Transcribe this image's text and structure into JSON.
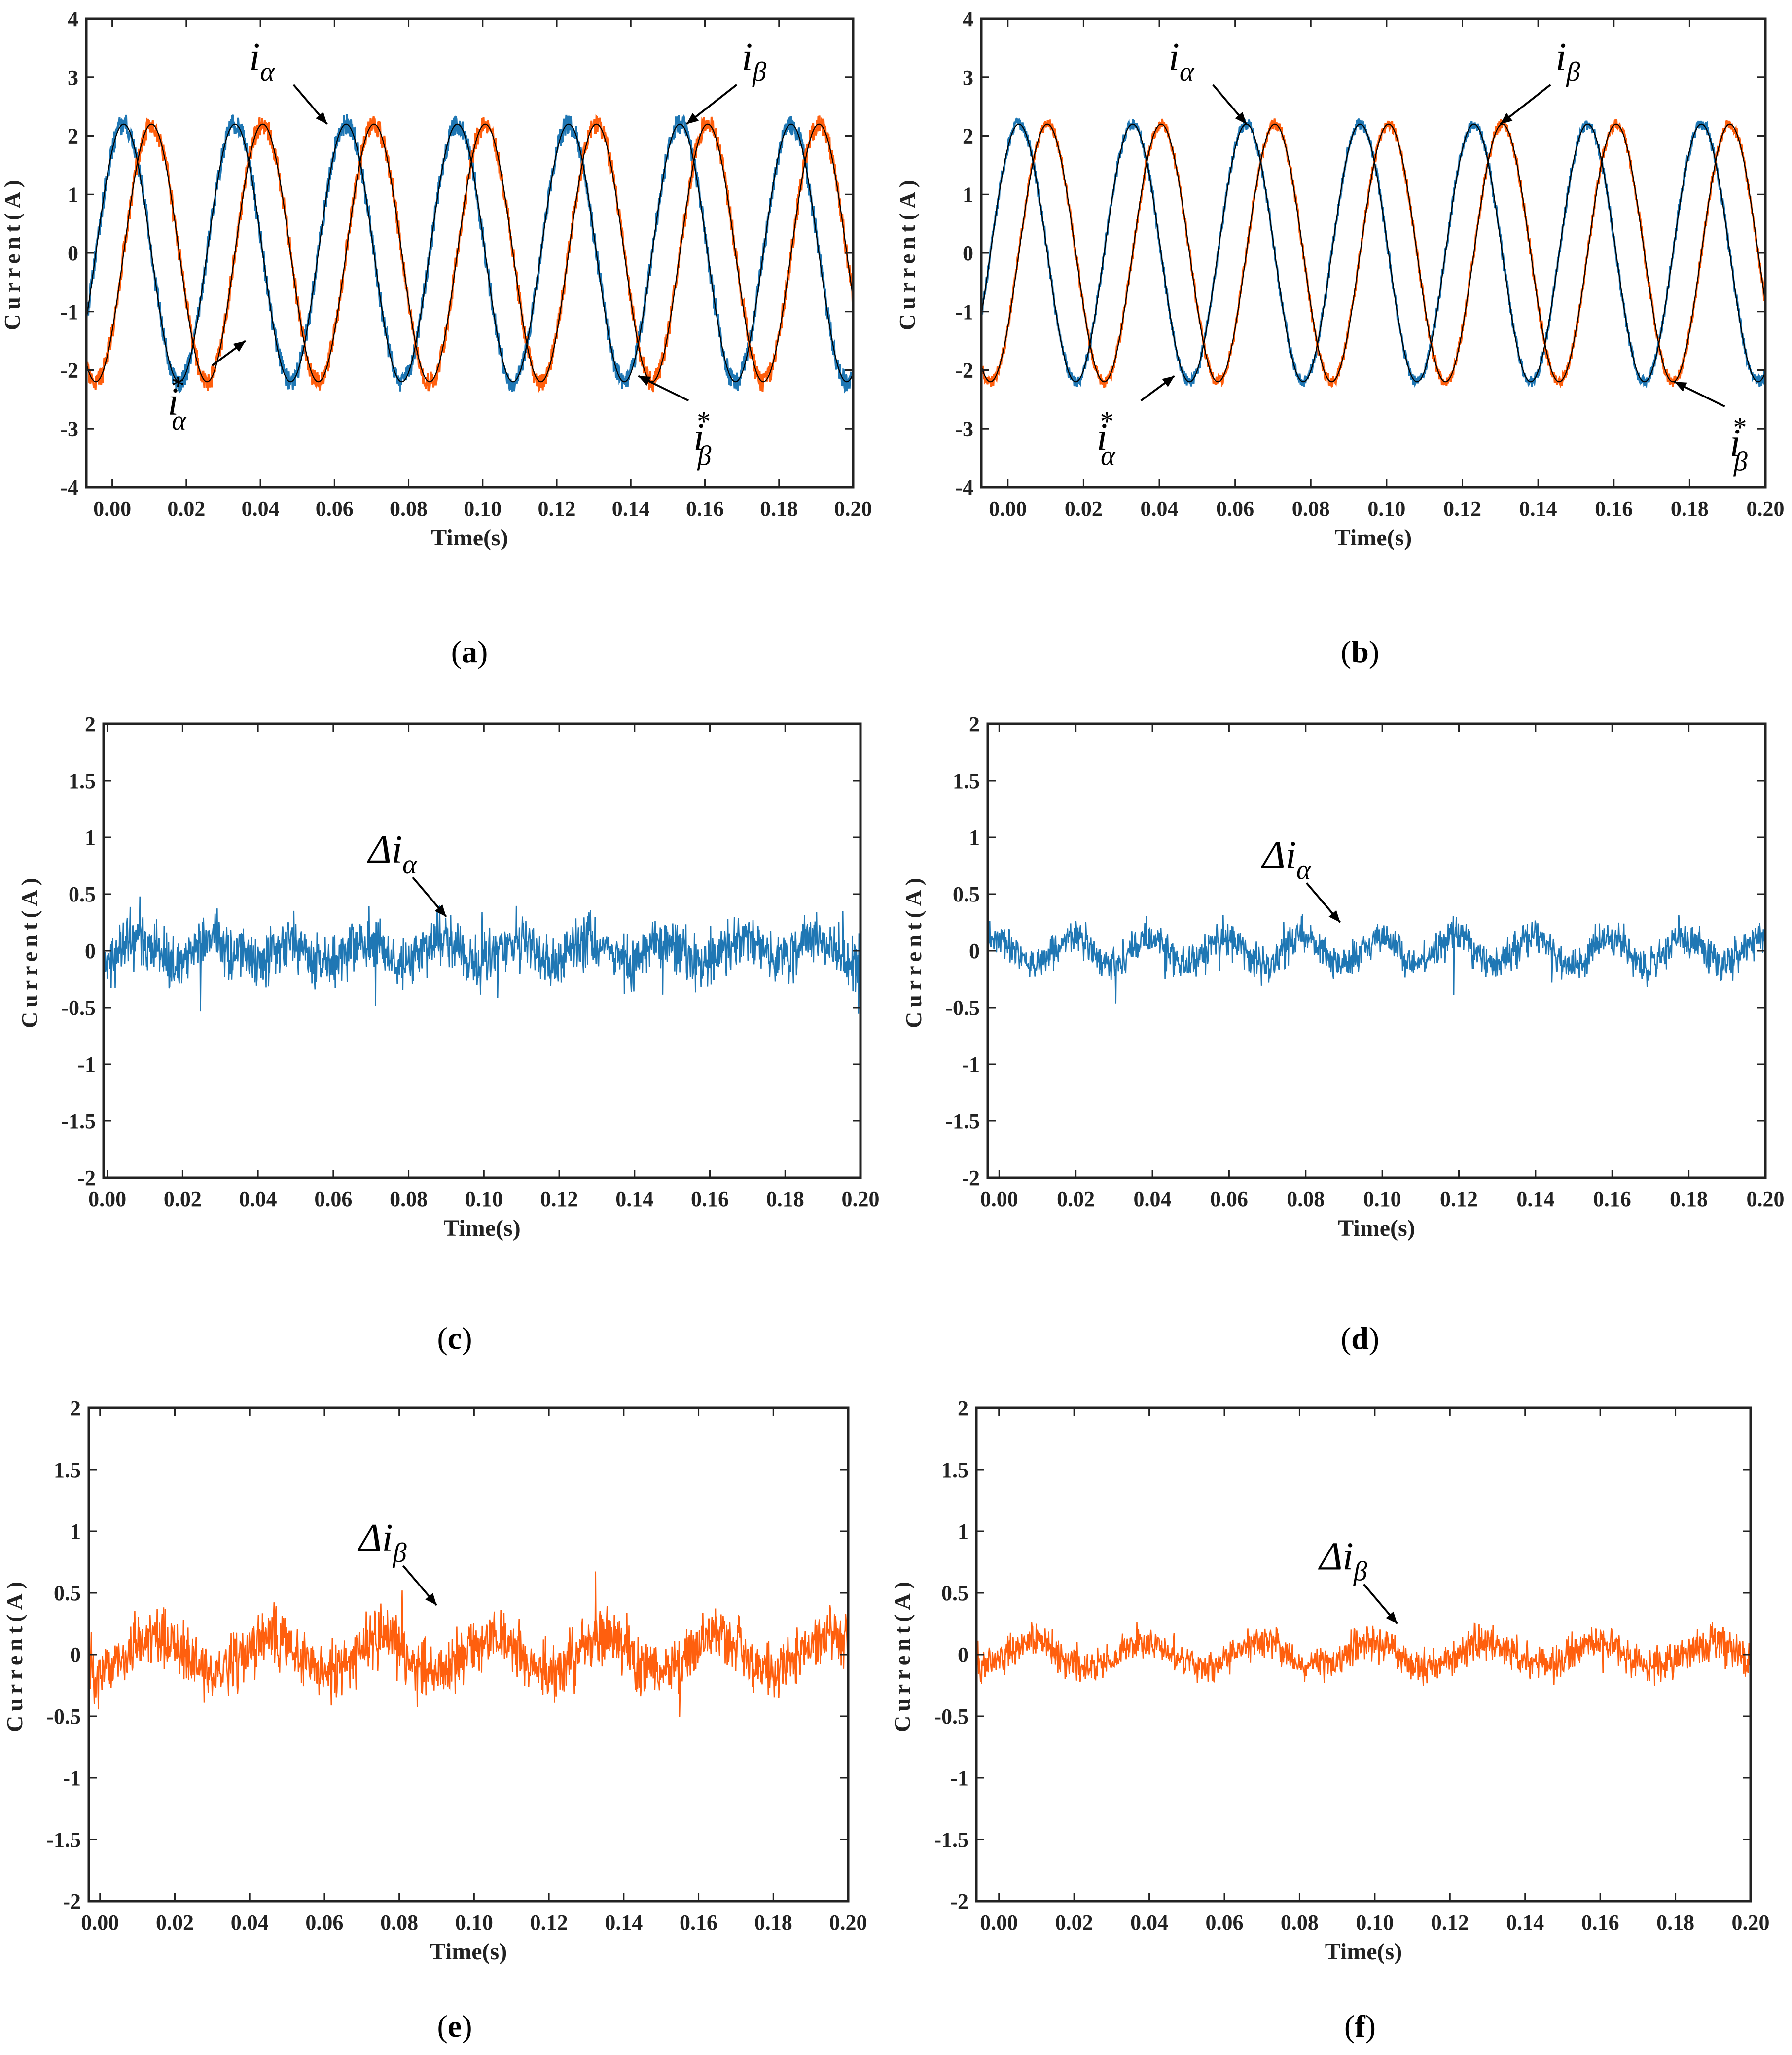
{
  "colors": {
    "alpha": "#1f77b4",
    "beta": "#ff5f0e",
    "reference": "#000000",
    "axis": "#222222"
  },
  "chart_data": [
    {
      "id": "a",
      "type": "line",
      "caption": "a",
      "xlabel": "Time(s)",
      "ylabel": "Current(A)",
      "xlim": [
        -0.007,
        0.2
      ],
      "ylim": [
        -4,
        4
      ],
      "xticks": [
        "0.00",
        "0.02",
        "0.04",
        "0.06",
        "0.08",
        "0.10",
        "0.12",
        "0.14",
        "0.16",
        "0.18",
        "0.20"
      ],
      "yticks": [
        "-4",
        "-3",
        "-2",
        "-1",
        "0",
        "1",
        "2",
        "3",
        "4"
      ],
      "signal": {
        "kind": "sine",
        "freq": 33.3,
        "amp": 2.2,
        "phase_alpha_deg": 53,
        "noise": 0.18
      },
      "series": [
        {
          "name": "i_alpha",
          "color": "alpha",
          "measured": true
        },
        {
          "name": "i_beta",
          "color": "beta",
          "measured": true
        },
        {
          "name": "i_alpha*",
          "color": "reference",
          "measured": false
        },
        {
          "name": "i_beta*",
          "color": "reference",
          "measured": false
        }
      ],
      "annotations": [
        {
          "base": "i",
          "sub": "α",
          "sup": "",
          "x": 0.058,
          "y": 2.2
        },
        {
          "base": "i",
          "sub": "β",
          "sup": "",
          "x": 0.155,
          "y": 2.2
        },
        {
          "base": "i",
          "sub": "α",
          "sup": "*",
          "x": 0.036,
          "y": -1.5
        },
        {
          "base": "i",
          "sub": "β",
          "sup": "*",
          "x": 0.142,
          "y": -2.1
        }
      ]
    },
    {
      "id": "b",
      "type": "line",
      "caption": "b",
      "xlabel": "Time(s)",
      "ylabel": "Current(A)",
      "xlim": [
        -0.007,
        0.2
      ],
      "ylim": [
        -4,
        4
      ],
      "xticks": [
        "0.00",
        "0.02",
        "0.04",
        "0.06",
        "0.08",
        "0.10",
        "0.12",
        "0.14",
        "0.16",
        "0.18",
        "0.20"
      ],
      "yticks": [
        "-4",
        "-3",
        "-2",
        "-1",
        "0",
        "1",
        "2",
        "3",
        "4"
      ],
      "signal": {
        "kind": "sine",
        "freq": 33.3,
        "amp": 2.2,
        "phase_alpha_deg": 55,
        "noise": 0.1
      },
      "series": [
        {
          "name": "i_alpha",
          "color": "alpha",
          "measured": true
        },
        {
          "name": "i_beta",
          "color": "beta",
          "measured": true
        },
        {
          "name": "i_alpha*",
          "color": "reference",
          "measured": false
        },
        {
          "name": "i_beta*",
          "color": "reference",
          "measured": false
        }
      ],
      "annotations": [
        {
          "base": "i",
          "sub": "α",
          "sup": "",
          "x": 0.063,
          "y": 2.2
        },
        {
          "base": "i",
          "sub": "β",
          "sup": "",
          "x": 0.13,
          "y": 2.2
        },
        {
          "base": "i",
          "sub": "α",
          "sup": "*",
          "x": 0.044,
          "y": -2.1
        },
        {
          "base": "i",
          "sub": "β",
          "sup": "*",
          "x": 0.176,
          "y": -2.2
        }
      ]
    },
    {
      "id": "c",
      "type": "line",
      "caption": "c",
      "xlabel": "Time(s)",
      "ylabel": "Current(A)",
      "xlim": [
        -0.001,
        0.2
      ],
      "ylim": [
        -2,
        2
      ],
      "xticks": [
        "0.00",
        "0.02",
        "0.04",
        "0.06",
        "0.08",
        "0.10",
        "0.12",
        "0.14",
        "0.16",
        "0.18",
        "0.20"
      ],
      "yticks": [
        "-2",
        "-1.5",
        "-1",
        "-0.5",
        "0",
        "0.5",
        "1",
        "1.5",
        "2"
      ],
      "signal": {
        "kind": "error",
        "freq": 50,
        "amp": 0.1,
        "noise": 0.17,
        "color": "alpha",
        "seed": 3
      },
      "annotations": [
        {
          "base": "Δi",
          "sub": "α",
          "sup": "",
          "x": 0.09,
          "y": 0.3
        }
      ]
    },
    {
      "id": "d",
      "type": "line",
      "caption": "d",
      "xlabel": "Time(s)",
      "ylabel": "Current(A)",
      "xlim": [
        -0.003,
        0.2
      ],
      "ylim": [
        -2,
        2
      ],
      "xticks": [
        "0.00",
        "0.02",
        "0.04",
        "0.06",
        "0.08",
        "0.10",
        "0.12",
        "0.14",
        "0.16",
        "0.18",
        "0.20"
      ],
      "yticks": [
        "-2",
        "-1.5",
        "-1",
        "-0.5",
        "0",
        "0.5",
        "1",
        "1.5",
        "2"
      ],
      "signal": {
        "kind": "error",
        "freq": 50,
        "amp": 0.12,
        "noise": 0.11,
        "color": "alpha",
        "seed": 7
      },
      "annotations": [
        {
          "base": "Δi",
          "sub": "α",
          "sup": "",
          "x": 0.089,
          "y": 0.25
        }
      ]
    },
    {
      "id": "e",
      "type": "line",
      "caption": "e",
      "xlabel": "Time(s)",
      "ylabel": "Current(A)",
      "xlim": [
        -0.003,
        0.2
      ],
      "ylim": [
        -2,
        2
      ],
      "xticks": [
        "0.00",
        "0.02",
        "0.04",
        "0.06",
        "0.08",
        "0.10",
        "0.12",
        "0.14",
        "0.16",
        "0.18",
        "0.20"
      ],
      "yticks": [
        "-2",
        "-1.5",
        "-1",
        "-0.5",
        "0",
        "0.5",
        "1",
        "1.5",
        "2"
      ],
      "signal": {
        "kind": "error",
        "freq": 33.3,
        "amp": 0.15,
        "noise": 0.17,
        "color": "beta",
        "seed": 11
      },
      "annotations": [
        {
          "base": "Δi",
          "sub": "β",
          "sup": "",
          "x": 0.09,
          "y": 0.4
        }
      ]
    },
    {
      "id": "f",
      "type": "line",
      "caption": "f",
      "xlabel": "Time(s)",
      "ylabel": "Current(A)",
      "xlim": [
        -0.006,
        0.2
      ],
      "ylim": [
        -2,
        2
      ],
      "xticks": [
        "0.00",
        "0.02",
        "0.04",
        "0.06",
        "0.08",
        "0.10",
        "0.12",
        "0.14",
        "0.16",
        "0.18",
        "0.20"
      ],
      "yticks": [
        "-2",
        "-1.5",
        "-1",
        "-0.5",
        "0",
        "0.5",
        "1",
        "1.5",
        "2"
      ],
      "signal": {
        "kind": "error",
        "freq": 33.3,
        "amp": 0.1,
        "noise": 0.1,
        "color": "beta",
        "seed": 17
      },
      "annotations": [
        {
          "base": "Δi",
          "sub": "β",
          "sup": "",
          "x": 0.106,
          "y": 0.25
        }
      ]
    }
  ]
}
